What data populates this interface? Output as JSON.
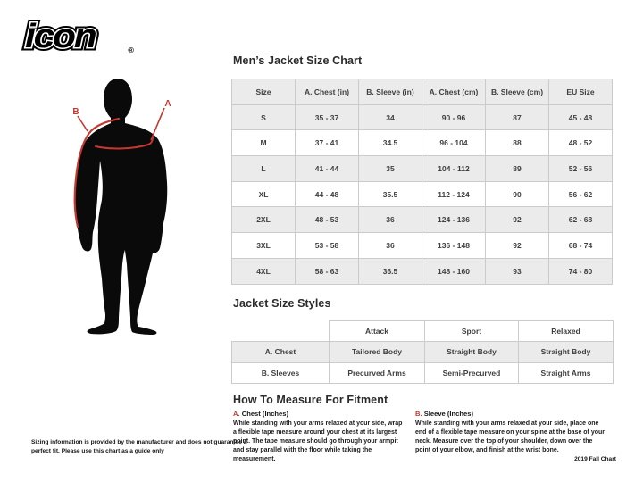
{
  "brand": {
    "logo_text": "icon",
    "registered": "®"
  },
  "figure": {
    "label_a": "A",
    "label_b": "B"
  },
  "size_chart": {
    "title": "Men’s Jacket Size Chart",
    "columns": [
      "Size",
      "A. Chest (in)",
      "B. Sleeve (in)",
      "A. Chest (cm)",
      "B. Sleeve (cm)",
      "EU Size"
    ],
    "rows": [
      [
        "S",
        "35 - 37",
        "34",
        "90 - 96",
        "87",
        "45 - 48"
      ],
      [
        "M",
        "37 - 41",
        "34.5",
        "96 - 104",
        "88",
        "48 - 52"
      ],
      [
        "L",
        "41 - 44",
        "35",
        "104 - 112",
        "89",
        "52 - 56"
      ],
      [
        "XL",
        "44 - 48",
        "35.5",
        "112 - 124",
        "90",
        "56 - 62"
      ],
      [
        "2XL",
        "48 - 53",
        "36",
        "124 - 136",
        "92",
        "62 - 68"
      ],
      [
        "3XL",
        "53 - 58",
        "36",
        "136 - 148",
        "92",
        "68 - 74"
      ],
      [
        "4XL",
        "58 - 63",
        "36.5",
        "148 - 160",
        "93",
        "74 - 80"
      ]
    ]
  },
  "style_chart": {
    "title": "Jacket Size Styles",
    "columns": [
      "",
      "Attack",
      "Sport",
      "Relaxed"
    ],
    "rows": [
      [
        "A. Chest",
        "Tailored Body",
        "Straight Body",
        "Straight Body"
      ],
      [
        "B. Sleeves",
        "Precurved Arms",
        "Semi-Precurved",
        "Straight Arms"
      ]
    ]
  },
  "measure": {
    "title": "How To Measure For Fitment",
    "items": [
      {
        "letter": "A.",
        "heading": " Chest (Inches)",
        "body": "While standing with your arms relaxed at your side, wrap a flexible tape measure around your chest at its largest point. The tape measure should go through your armpit and stay parallel with the floor while taking the measurement."
      },
      {
        "letter": "B.",
        "heading": " Sleeve (Inches)",
        "body": "While standing with your arms relaxed at your side, place one end of a flexible tape measure on your spine at the base of your neck. Measure over the top of your shoulder, down over the point of your elbow, and finish at the wrist bone."
      }
    ]
  },
  "footer": {
    "disclaimer": "Sizing information is provided by the manufacturer and does not guarantee a perfect fit. Please use this chart as a guide only",
    "chart_version": "2019 Fall Chart"
  },
  "colors": {
    "accent_red": "#c5372f",
    "silhouette": "#0a0a0a",
    "row_gray": "#ebebeb",
    "border_gray": "#cbcbcb"
  }
}
